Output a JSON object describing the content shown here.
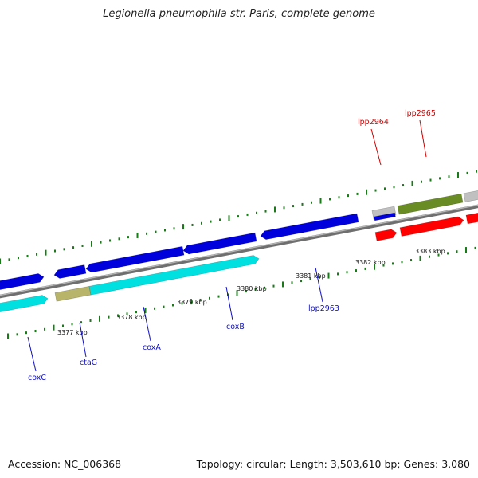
{
  "title": "Legionella pneumophila str. Paris, complete genome",
  "footer": {
    "accession": "Accession: NC_006368",
    "summary": "Topology: circular; Length: 3,503,610 bp; Genes: 3,080"
  },
  "colors": {
    "blue_gene": "#0000dd",
    "cyan_gene": "#00e0e0",
    "red_gene": "#ff0000",
    "olive_gene": "#6a8c24",
    "khaki_gene": "#b8b46a",
    "grey_gene": "#c0c0c0",
    "backbone": "#888888",
    "tick": "#1a7a1a",
    "label_blue": "#1010c0",
    "label_red": "#d00000"
  },
  "tick_labels": [
    {
      "kbp": 3377,
      "text": "3377 kbp"
    },
    {
      "kbp": 3378,
      "text": "3378 kbp"
    },
    {
      "kbp": 3379,
      "text": "3379 kbp"
    },
    {
      "kbp": 3380,
      "text": "3380 kbp"
    },
    {
      "kbp": 3381,
      "text": "3381 kbp"
    },
    {
      "kbp": 3382,
      "text": "3382 kbp"
    },
    {
      "kbp": 3383,
      "text": "3383 kbp"
    }
  ],
  "gene_labels": [
    {
      "text": "coxC",
      "color": "label_blue"
    },
    {
      "text": "ctaG",
      "color": "label_blue"
    },
    {
      "text": "coxA",
      "color": "label_blue"
    },
    {
      "text": "coxB",
      "color": "label_blue"
    },
    {
      "text": "lpp2963",
      "color": "label_blue"
    },
    {
      "text": "lpp2964",
      "color": "label_red"
    },
    {
      "text": "lpp2965",
      "color": "label_red"
    }
  ]
}
